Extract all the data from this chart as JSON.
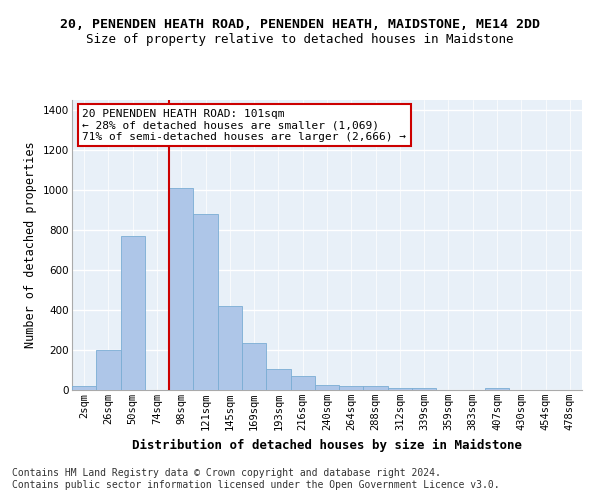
{
  "title1": "20, PENENDEN HEATH ROAD, PENENDEN HEATH, MAIDSTONE, ME14 2DD",
  "title2": "Size of property relative to detached houses in Maidstone",
  "xlabel": "Distribution of detached houses by size in Maidstone",
  "ylabel": "Number of detached properties",
  "categories": [
    "2sqm",
    "26sqm",
    "50sqm",
    "74sqm",
    "98sqm",
    "121sqm",
    "145sqm",
    "169sqm",
    "193sqm",
    "216sqm",
    "240sqm",
    "264sqm",
    "288sqm",
    "312sqm",
    "339sqm",
    "359sqm",
    "383sqm",
    "407sqm",
    "430sqm",
    "454sqm",
    "478sqm"
  ],
  "values": [
    20,
    200,
    770,
    0,
    1010,
    880,
    420,
    235,
    105,
    70,
    25,
    20,
    18,
    8,
    10,
    0,
    0,
    10,
    0,
    0,
    0
  ],
  "bar_color": "#aec6e8",
  "bar_edgecolor": "#7aadd4",
  "vline_index": 4,
  "vline_color": "#cc0000",
  "annotation_text": "20 PENENDEN HEATH ROAD: 101sqm\n← 28% of detached houses are smaller (1,069)\n71% of semi-detached houses are larger (2,666) →",
  "annotation_box_color": "#ffffff",
  "annotation_box_edgecolor": "#cc0000",
  "ylim": [
    0,
    1450
  ],
  "yticks": [
    0,
    200,
    400,
    600,
    800,
    1000,
    1200,
    1400
  ],
  "footnote1": "Contains HM Land Registry data © Crown copyright and database right 2024.",
  "footnote2": "Contains public sector information licensed under the Open Government Licence v3.0.",
  "bg_color": "#e8f0f8",
  "grid_color": "#ffffff",
  "fig_bg_color": "#ffffff",
  "title1_fontsize": 9.5,
  "title2_fontsize": 9,
  "xlabel_fontsize": 9,
  "ylabel_fontsize": 8.5,
  "tick_fontsize": 7.5,
  "annotation_fontsize": 8,
  "footnote_fontsize": 7
}
